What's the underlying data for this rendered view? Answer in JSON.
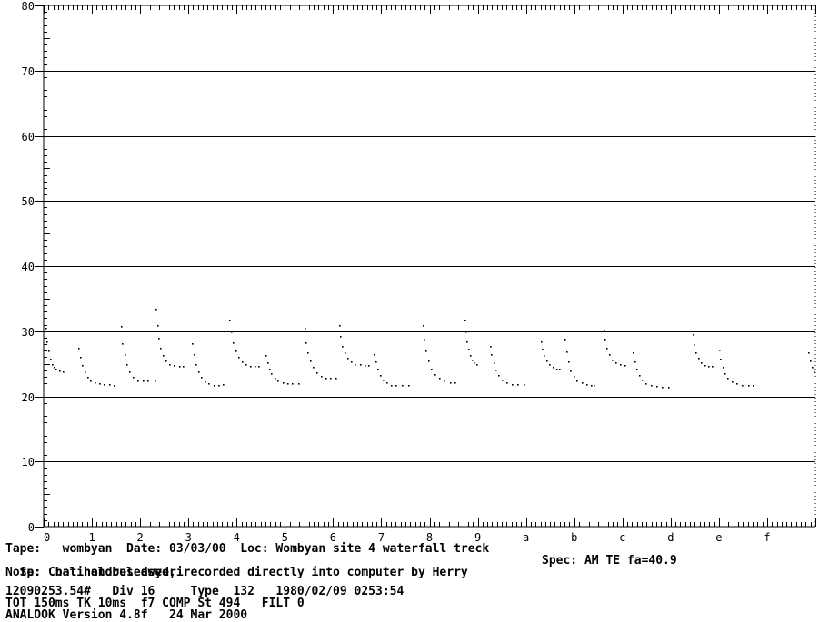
{
  "chart_data": {
    "type": "scatter",
    "title": "",
    "xlabel": "",
    "ylabel": "",
    "xlim": [
      0,
      16
    ],
    "ylim": [
      0,
      80
    ],
    "x_tick_labels": [
      "0",
      "1",
      "2",
      "3",
      "4",
      "5",
      "6",
      "7",
      "8",
      "9",
      "a",
      "b",
      "c",
      "d",
      "e",
      "f"
    ],
    "y_tick_labels": [
      "0",
      "10",
      "20",
      "30",
      "40",
      "50",
      "60",
      "70",
      "80"
    ],
    "y_ticks": [
      0,
      10,
      20,
      30,
      40,
      50,
      60,
      70,
      80
    ],
    "grid": true,
    "pulses": [
      {
        "x": [
          0.04,
          0.06,
          0.09,
          0.13,
          0.17,
          0.21,
          0.25,
          0.32,
          0.4
        ],
        "y": [
          30.5,
          28.5,
          27.0,
          25.8,
          25.0,
          24.5,
          24.2,
          24.0,
          23.9
        ]
      },
      {
        "x": [
          0.72,
          0.76,
          0.8,
          0.85,
          0.9,
          0.96,
          1.05,
          1.15,
          1.25,
          1.35,
          1.45
        ],
        "y": [
          27.5,
          26.0,
          24.8,
          23.8,
          23.0,
          22.5,
          22.1,
          22.0,
          21.9,
          21.9,
          21.8
        ]
      },
      {
        "x": [
          1.6,
          1.63,
          1.67,
          1.72,
          1.78,
          1.85,
          1.95,
          2.05,
          2.15,
          2.3
        ],
        "y": [
          30.8,
          28.2,
          26.5,
          25.0,
          23.9,
          23.0,
          22.5,
          22.4,
          22.4,
          22.4
        ]
      },
      {
        "x": [
          2.32,
          2.35,
          2.38,
          2.42,
          2.47,
          2.53,
          2.6,
          2.7,
          2.8,
          2.88
        ],
        "y": [
          33.5,
          31.0,
          29.0,
          27.5,
          26.3,
          25.5,
          25.0,
          24.8,
          24.7,
          24.6
        ]
      },
      {
        "x": [
          3.08,
          3.11,
          3.15,
          3.2,
          3.26,
          3.33,
          3.42,
          3.52,
          3.62,
          3.72
        ],
        "y": [
          28.2,
          26.5,
          25.0,
          23.8,
          23.0,
          22.3,
          22.0,
          21.8,
          21.8,
          21.9
        ]
      },
      {
        "x": [
          3.85,
          3.88,
          3.92,
          3.97,
          4.03,
          4.1,
          4.18,
          4.28,
          4.38,
          4.45
        ],
        "y": [
          31.8,
          30.0,
          28.3,
          27.0,
          26.0,
          25.3,
          24.9,
          24.7,
          24.6,
          24.6
        ]
      },
      {
        "x": [
          4.6,
          4.63,
          4.67,
          4.72,
          4.78,
          4.85,
          4.95,
          5.05,
          5.15,
          5.28
        ],
        "y": [
          26.3,
          25.2,
          24.3,
          23.5,
          22.9,
          22.4,
          22.1,
          22.0,
          22.0,
          22.0
        ]
      },
      {
        "x": [
          5.4,
          5.43,
          5.47,
          5.52,
          5.58,
          5.65,
          5.74,
          5.84,
          5.94,
          6.05
        ],
        "y": [
          30.5,
          28.3,
          26.8,
          25.5,
          24.5,
          23.7,
          23.2,
          22.9,
          22.8,
          22.8
        ]
      },
      {
        "x": [
          6.12,
          6.15,
          6.19,
          6.24,
          6.3,
          6.37,
          6.45,
          6.55,
          6.65,
          6.72
        ],
        "y": [
          31.0,
          29.3,
          27.8,
          26.7,
          25.9,
          25.3,
          25.0,
          24.9,
          24.8,
          24.8
        ]
      },
      {
        "x": [
          6.85,
          6.88,
          6.92,
          6.97,
          7.03,
          7.1,
          7.2,
          7.3,
          7.42,
          7.55
        ],
        "y": [
          26.5,
          25.3,
          24.2,
          23.3,
          22.6,
          22.1,
          21.8,
          21.7,
          21.7,
          21.7
        ]
      },
      {
        "x": [
          7.85,
          7.88,
          7.92,
          7.97,
          8.03,
          8.1,
          8.2,
          8.3,
          8.42,
          8.52
        ],
        "y": [
          31.0,
          28.8,
          27.0,
          25.5,
          24.3,
          23.4,
          22.8,
          22.4,
          22.2,
          22.2
        ]
      },
      {
        "x": [
          8.72,
          8.74,
          8.77,
          8.8,
          8.84,
          8.88,
          8.92,
          8.97
        ],
        "y": [
          31.8,
          30.0,
          28.5,
          27.3,
          26.3,
          25.6,
          25.2,
          25.0
        ]
      },
      {
        "x": [
          9.25,
          9.28,
          9.32,
          9.37,
          9.43,
          9.5,
          9.6,
          9.7,
          9.82,
          9.95
        ],
        "y": [
          27.8,
          26.5,
          25.2,
          24.1,
          23.3,
          22.6,
          22.1,
          21.9,
          21.9,
          21.9
        ]
      },
      {
        "x": [
          10.3,
          10.33,
          10.37,
          10.42,
          10.48,
          10.55,
          10.62,
          10.68
        ],
        "y": [
          28.5,
          27.3,
          26.3,
          25.5,
          24.9,
          24.5,
          24.3,
          24.3
        ]
      },
      {
        "x": [
          10.8,
          10.83,
          10.87,
          10.92,
          10.98,
          11.05,
          11.15,
          11.25,
          11.35,
          11.4
        ],
        "y": [
          28.8,
          26.9,
          25.3,
          24.0,
          23.1,
          22.5,
          22.1,
          21.9,
          21.8,
          21.8
        ]
      },
      {
        "x": [
          11.6,
          11.63,
          11.67,
          11.72,
          11.78,
          11.85,
          11.95,
          12.05
        ],
        "y": [
          30.2,
          28.8,
          27.5,
          26.5,
          25.7,
          25.2,
          24.9,
          24.8
        ]
      },
      {
        "x": [
          12.22,
          12.25,
          12.29,
          12.34,
          12.4,
          12.48,
          12.58,
          12.7,
          12.82,
          12.95
        ],
        "y": [
          26.8,
          25.4,
          24.2,
          23.3,
          22.6,
          22.0,
          21.7,
          21.6,
          21.5,
          21.5
        ]
      },
      {
        "x": [
          13.45,
          13.48,
          13.52,
          13.57,
          13.63,
          13.7,
          13.78,
          13.85
        ],
        "y": [
          29.5,
          28.0,
          26.8,
          25.9,
          25.2,
          24.8,
          24.6,
          24.6
        ]
      },
      {
        "x": [
          14.0,
          14.03,
          14.07,
          14.12,
          14.18,
          14.26,
          14.36,
          14.48,
          14.6,
          14.7
        ],
        "y": [
          27.2,
          25.8,
          24.5,
          23.5,
          22.8,
          22.3,
          22.0,
          21.8,
          21.7,
          21.7
        ]
      },
      {
        "x": [
          15.85,
          15.88,
          15.92,
          15.96
        ],
        "y": [
          26.8,
          25.5,
          24.5,
          23.8
        ]
      }
    ]
  },
  "info": {
    "line1": "Tape:   wombyan  Date: 03/03/00  Loc: Wombyan site 4 waterfall treck",
    "line2_left": "Sp: Chalinolobus dwyeri",
    "line2_right": "Spec: AM TE fa=40.9",
    "line3": "Note:  bat handreleased, recorded directly into computer by Herry",
    "line4": "12090253.54#   Div 16     Type  132   1980/02/09 0253:54",
    "line5": "TOT 150ms TK 10ms  f7 COMP St 494   FILT 0",
    "line6": "ANALOOK Version 4.8f   24 Mar 2000"
  }
}
